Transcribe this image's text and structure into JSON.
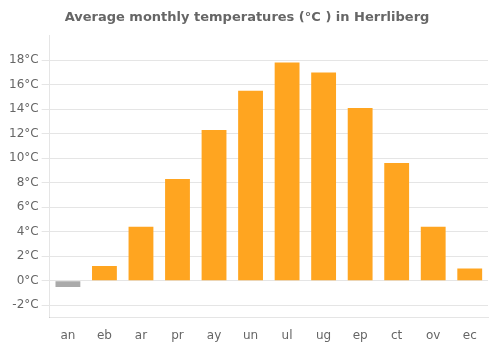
{
  "chart_data": {
    "type": "bar",
    "title": "Average monthly temperatures (°C ) in Herrliberg",
    "categories": [
      "an",
      "eb",
      "ar",
      "pr",
      "ay",
      "un",
      "ul",
      "ug",
      "ep",
      "ct",
      "ov",
      "ec"
    ],
    "values": [
      -0.5,
      1.2,
      4.4,
      8.3,
      12.3,
      15.5,
      17.8,
      17.0,
      14.1,
      9.6,
      4.4,
      1.0
    ],
    "colors": [
      "#aaaaaa",
      "#FFA520",
      "#FFA520",
      "#FFA520",
      "#FFA520",
      "#FFA520",
      "#FFA520",
      "#FFA520",
      "#FFA520",
      "#FFA520",
      "#FFA520",
      "#FFA520"
    ],
    "ylim": [
      -3.0,
      20.0
    ],
    "yticks": [
      {
        "value": -2,
        "label": "-2°C"
      },
      {
        "value": 0,
        "label": "0°C"
      },
      {
        "value": 2,
        "label": "2°C"
      },
      {
        "value": 4,
        "label": "4°C"
      },
      {
        "value": 6,
        "label": "6°C"
      },
      {
        "value": 8,
        "label": "8°C"
      },
      {
        "value": 10,
        "label": "10°C"
      },
      {
        "value": 12,
        "label": "12°C"
      },
      {
        "value": 14,
        "label": "14°C"
      },
      {
        "value": 16,
        "label": "16°C"
      },
      {
        "value": 18,
        "label": "18°C"
      }
    ],
    "grid": "y"
  }
}
